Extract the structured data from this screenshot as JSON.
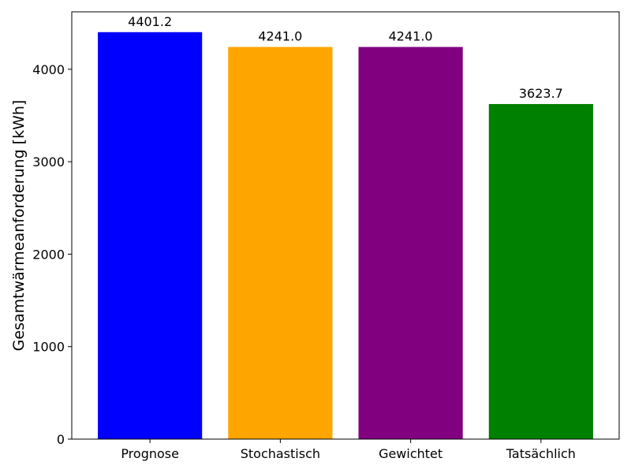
{
  "chart_data": {
    "type": "bar",
    "title": "",
    "xlabel": "",
    "ylabel": "Gesamtwärmeanforderung [kWh]",
    "categories": [
      "Prognose",
      "Stochastisch",
      "Gewichtet",
      "Tatsächlich"
    ],
    "values": [
      4401.2,
      4241.0,
      4241.0,
      3623.7
    ],
    "value_labels": [
      "4401.2",
      "4241.0",
      "4241.0",
      "3623.7"
    ],
    "colors": [
      "#0000ff",
      "#ffa500",
      "#800080",
      "#008000"
    ],
    "ylim": [
      0,
      4621
    ],
    "yticks": [
      0,
      1000,
      2000,
      3000,
      4000
    ],
    "ytick_labels": [
      "0",
      "1000",
      "2000",
      "3000",
      "4000"
    ],
    "grid": false,
    "legend": "none"
  }
}
